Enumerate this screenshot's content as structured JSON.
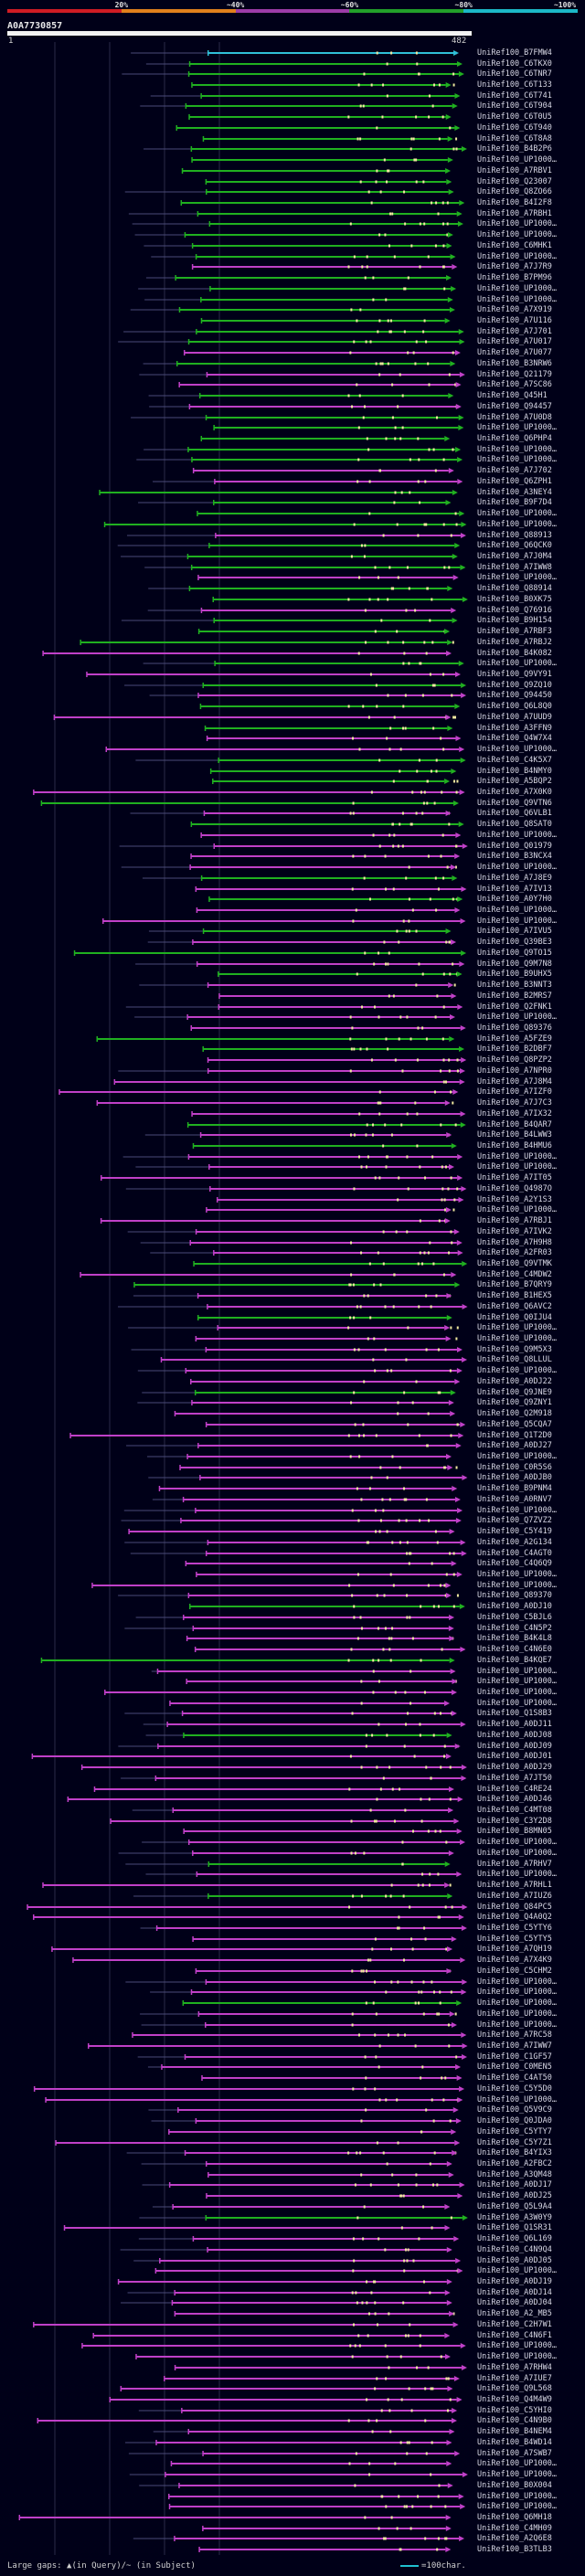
{
  "scale": {
    "labels": [
      "20%",
      "~40%",
      "~60%",
      "~80%",
      "~100%"
    ],
    "colors": [
      "#d01c24",
      "#e0801c",
      "#9c3ca8",
      "#22a02a",
      "#1cb8c8"
    ]
  },
  "query": {
    "id": "A0A7730857",
    "start": "1",
    "end": "482"
  },
  "legend": {
    "gaps_text": "Large gaps: ▲(in Query)/~ (in Subject)",
    "scale_text": "=100char."
  },
  "hit_colors": {
    "purple": "#c040c8",
    "green": "#20b020",
    "cyan": "#30c0d8",
    "orange": "#d08020",
    "connector": "#4a4a78",
    "gap_mark": "#f0e8a0"
  },
  "hit_sequence": "cgggggggggggggggggggpgggggggpgppgpgggggppggggpgggpggpgggpgpgpgpgppgggpgpgppppgpgppgpgpgpppppggppppppgpgppppppppppgpgppgppppppgpppppppppppppppppppgppppgppppppgpppppppppppgppgpppppppppgpppppppppppppppppppgppppppppppppppppppppppppppppppppgpppppppppppppppppppppppppppppppppppppgppppppppppppppppppppppppppppppppppppppppppppppppppopppppppppppppppppppppppppppppppppp",
  "hits": [
    "UniRef100_B7FMW4",
    "UniRef100_C6TKX0",
    "UniRef100_C6TNR7",
    "UniRef100_C6T133",
    "UniRef100_C6T741",
    "UniRef100_C6T904",
    "UniRef100_C6T0U5",
    "UniRef100_C6T940",
    "UniRef100_C6T8A8",
    "UniRef100_B4B2P6",
    "UniRef100_UP1000…",
    "UniRef100_A7RBV1",
    "UniRef100_Q23007",
    "UniRef100_Q8ZO66",
    "UniRef100_B4I2F8",
    "UniRef100_A7RBH1",
    "UniRef100_UP1000…",
    "UniRef100_UP1000…",
    "UniRef100_C6MHK1",
    "UniRef100_UP1000…",
    "UniRef100_A7J7R9",
    "UniRef100_B7PM96",
    "UniRef100_UP1000…",
    "UniRef100_UP1000…",
    "UniRef100_A7X919",
    "UniRef100_A7U116",
    "UniRef100_A7J701",
    "UniRef100_A7U017",
    "UniRef100_A7U077",
    "UniRef100_B3NRW6",
    "UniRef100_Q21179",
    "UniRef100_A7SC86",
    "UniRef100_Q45H1",
    "UniRef100_Q94457",
    "UniRef100_A7U0D8",
    "UniRef100_UP1000…",
    "UniRef100_Q6PHP4",
    "UniRef100_UP1000…",
    "UniRef100_UP1000…",
    "UniRef100_A7J702",
    "UniRef100_Q6ZPH1",
    "UniRef100_A3NEY4",
    "UniRef100_B9F7D4",
    "UniRef100_UP1000…",
    "UniRef100_UP1000…",
    "UniRef100_Q88913",
    "UniRef100_Q6QCK0",
    "UniRef100_A7J0M4",
    "UniRef100_A7IWW8",
    "UniRef100_UP1000…",
    "UniRef100_Q88914",
    "UniRef100_B0XK75",
    "UniRef100_Q76916",
    "UniRef100_B9H154",
    "UniRef100_A7RBF3",
    "UniRef100_A7RBJ2",
    "UniRef100_B4K082",
    "UniRef100_UP1000…",
    "UniRef100_Q9VY91",
    "UniRef100_Q9ZQ10",
    "UniRef100_Q94450",
    "UniRef100_Q6L8Q0",
    "UniRef100_A7UUD9",
    "UniRef100_A3FFN9",
    "UniRef100_Q4W7X4",
    "UniRef100_UP1000…",
    "UniRef100_C4K5X7",
    "UniRef100_B4NMY0",
    "UniRef100_A5BQP2",
    "UniRef100_A7X0K0",
    "UniRef100_Q9VTN6",
    "UniRef100_Q6VLB1",
    "UniRef100_Q8SAT0",
    "UniRef100_UP1000…",
    "UniRef100_Q01979",
    "UniRef100_B3NCX4",
    "UniRef100_UP1000…",
    "UniRef100_A7J8E9",
    "UniRef100_A7IV13",
    "UniRef100_A0Y7H0",
    "UniRef100_UP1000…",
    "UniRef100_UP1000…",
    "UniRef100_A7IVU5",
    "UniRef100_Q39BE3",
    "UniRef100_Q9TO15",
    "UniRef100_Q9M7N8",
    "UniRef100_B9UHX5",
    "UniRef100_B3NNT3",
    "UniRef100_B2MRS7",
    "UniRef100_Q2FNK1",
    "UniRef100_UP1000…",
    "UniRef100_Q89376",
    "UniRef100_A5FZE9",
    "UniRef100_B2DBF7",
    "UniRef100_Q8PZP2",
    "UniRef100_A7NPR0",
    "UniRef100_A7J8M4",
    "UniRef100_A7IZF0",
    "UniRef100_A7J7C3",
    "UniRef100_A7IX32",
    "UniRef100_B4QAR7",
    "UniRef100_B4LWW3",
    "UniRef100_B4HMU6",
    "UniRef100_UP1000…",
    "UniRef100_UP1000…",
    "UniRef100_A7IT05",
    "UniRef100_Q4987O",
    "UniRef100_A2Y1S3",
    "UniRef100_UP1000…",
    "UniRef100_A7RBJ1",
    "UniRef100_A7IVK2",
    "UniRef100_A7H9H8",
    "UniRef100_A2FR03",
    "UniRef100_Q9VTMK",
    "UniRef100_C4MDW2",
    "UniRef100_B7QRY9",
    "UniRef100_B1HEX5",
    "UniRef100_Q6AVC2",
    "UniRef100_Q0IJU4",
    "UniRef100_UP1000…",
    "UniRef100_UP1000…",
    "UniRef100_Q9M5X3",
    "UniRef100_Q8LLUL",
    "UniRef100_UP1000…",
    "UniRef100_A0DJ22",
    "UniRef100_Q9JNE9",
    "UniRef100_Q9ZNY1",
    "UniRef100_Q2M918",
    "UniRef100_Q5CQA7",
    "UniRef100_Q1T2D0",
    "UniRef100_A0DJ27",
    "UniRef100_UP1000…",
    "UniRef100_C0R5S6",
    "UniRef100_A0DJB0",
    "UniRef100_B9PNM4",
    "UniRef100_A0RNV7",
    "UniRef100_UP1000…",
    "UniRef100_Q7ZVZ2",
    "UniRef100_C5Y419",
    "UniRef100_A2G134",
    "UniRef100_C4AGT0",
    "UniRef100_C4Q6Q9",
    "UniRef100_UP1000…",
    "UniRef100_UP1000…",
    "UniRef100_Q89370",
    "UniRef100_A0DJ10",
    "UniRef100_C5BJL6",
    "UniRef100_C4N5P2",
    "UniRef100_B4K4L8",
    "UniRef100_C4N6E0",
    "UniRef100_B4KQE7",
    "UniRef100_UP1000…",
    "UniRef100_UP1000…",
    "UniRef100_UP1000…",
    "UniRef100_UP1000…",
    "UniRef100_Q1S8B3",
    "UniRef100_A0DJ11",
    "UniRef100_A0DJ08",
    "UniRef100_A0DJ09",
    "UniRef100_A0DJ01",
    "UniRef100_A0DJ29",
    "UniRef100_A7JT50",
    "UniRef100_C4RE24",
    "UniRef100_A0DJ46",
    "UniRef100_C4MT08",
    "UniRef100_C3Y2D8",
    "UniRef100_B8MN05",
    "UniRef100_UP1000…",
    "UniRef100_UP1000…",
    "UniRef100_A7RHV7",
    "UniRef100_UP1000…",
    "UniRef100_A7RHL1",
    "UniRef100_A7IUZ6",
    "UniRef100_Q84PC5",
    "UniRef100_Q4A0Q2",
    "UniRef100_C5YTY6",
    "UniRef100_C5YTY5",
    "UniRef100_A7QH19",
    "UniRef100_A7X4K9",
    "UniRef100_C5CHM2",
    "UniRef100_UP1000…",
    "UniRef100_UP1000…",
    "UniRef100_UP1000…",
    "UniRef100_UP1000…",
    "UniRef100_UP1000…",
    "UniRef100_A7RC58",
    "UniRef100_A7IWW7",
    "UniRef100_C1GF57",
    "UniRef100_C0MEN5",
    "UniRef100_C4AT50",
    "UniRef100_C5Y5D0",
    "UniRef100_UP1000…",
    "UniRef100_Q5V9C9",
    "UniRef100_Q0JDA0",
    "UniRef100_C5YTY7",
    "UniRef100_C5Y7Z1",
    "UniRef100_B4YIX3",
    "UniRef100_A2FBC2",
    "UniRef100_A3QM48",
    "UniRef100_A0DJ17",
    "UniRef100_A0DJ25",
    "UniRef100_Q5L9A4",
    "UniRef100_A3W0Y9",
    "UniRef100_Q1SR31",
    "UniRef100_Q6L169",
    "UniRef100_C4N9Q4",
    "UniRef100_A0DJ05",
    "UniRef100_UP1000…",
    "UniRef100_A0DJ19",
    "UniRef100_A0DJ14",
    "UniRef100_A0DJ04",
    "UniRef100_A2_MB5",
    "UniRef100_C2H7W1",
    "UniRef100_C4N6F1",
    "UniRef100_UP1000…",
    "UniRef100_UP1000…",
    "UniRef100_A7RHW4",
    "UniRef100_A7IUE7",
    "UniRef100_Q9L568",
    "UniRef100_Q4M4W9",
    "UniRef100_C5YHI0",
    "UniRef100_C4N9B0",
    "UniRef100_B4NEM4",
    "UniRef100_B4WD14",
    "UniRef100_A7SWB7",
    "UniRef100_UP1000…",
    "UniRef100_UP1000…",
    "UniRef100_B0X004",
    "UniRef100_UP1000…",
    "UniRef100_UP1000…",
    "UniRef100_Q6MH18",
    "UniRef100_C4MH09",
    "UniRef100_A2Q6E8",
    "UniRef100_B3TLB3"
  ]
}
